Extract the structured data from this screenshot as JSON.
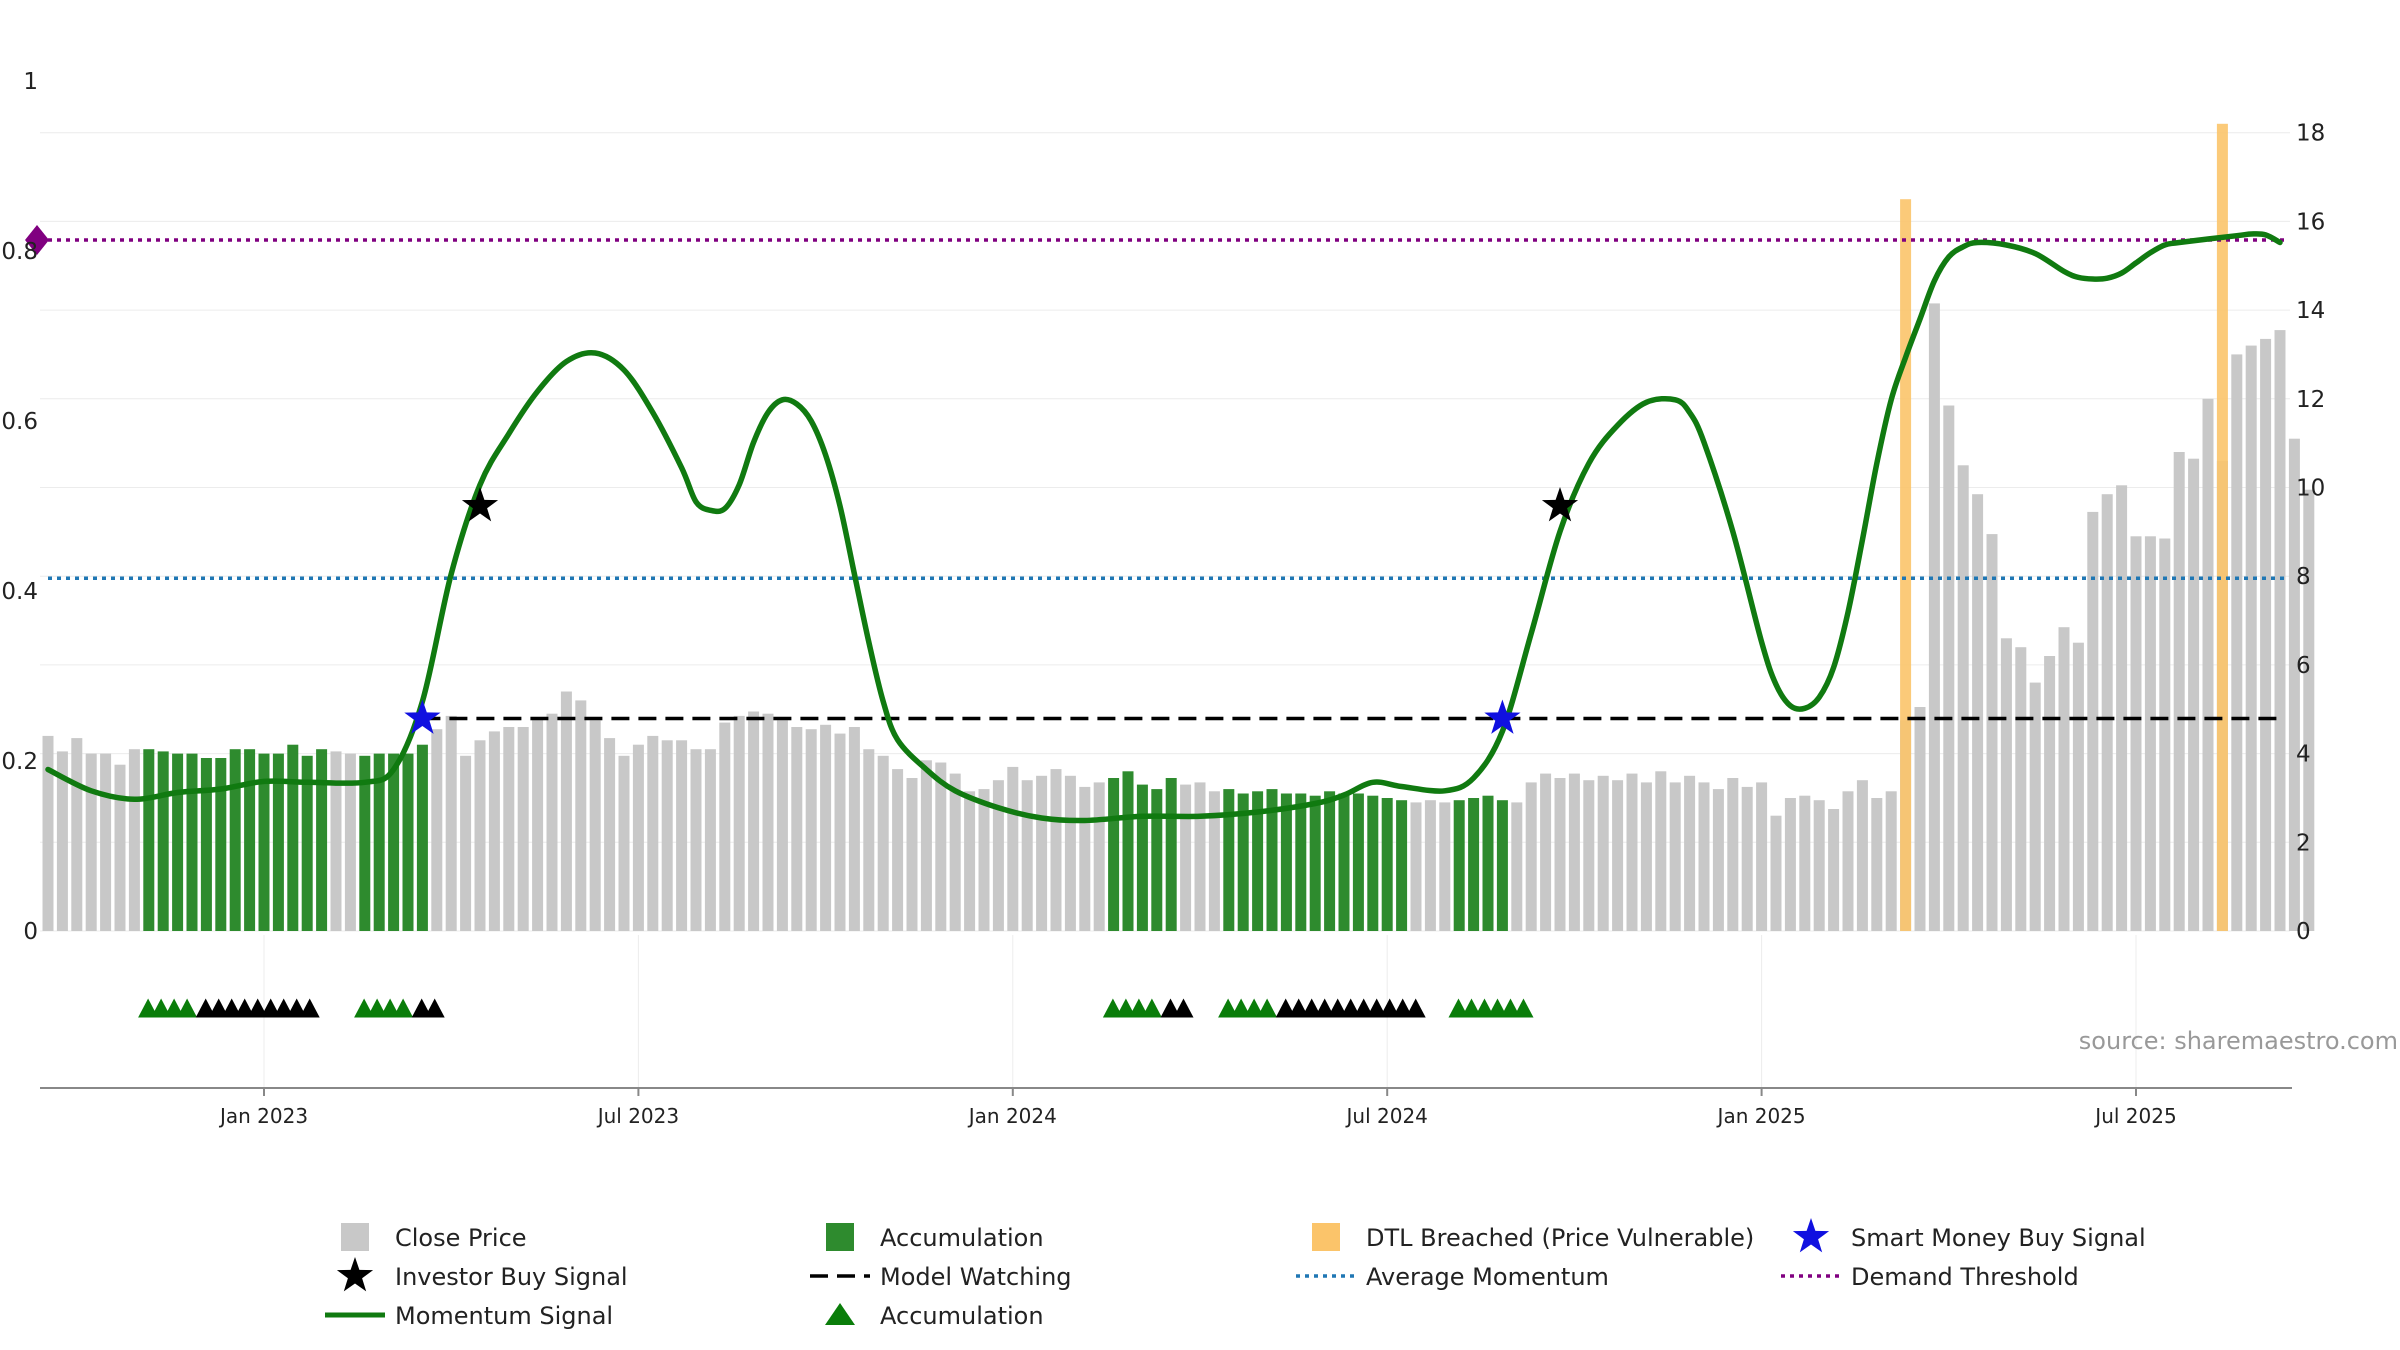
{
  "source": "source: sharemaestro.com",
  "colors": {
    "close_price": "#c8c8c8",
    "accumulation": "#2e8b2e",
    "dtl": "#fbc46a",
    "momentum": "#107a10",
    "model_watching": "#000000",
    "average_momentum": "#1f77b4",
    "demand_threshold": "#800080",
    "smart_money": "#1010e0",
    "investor_buy": "#000000",
    "accum_marker": "#0a7d0a"
  },
  "chart_data": {
    "type": "bar",
    "x_axis": {
      "ticks": [
        "Jan 2023",
        "Jul 2023",
        "Jan 2024",
        "Jul 2024",
        "Jan 2025",
        "Jul 2025"
      ],
      "tick_index": [
        15,
        41,
        67,
        93,
        119,
        145
      ],
      "grid": true
    },
    "y_left": {
      "range": [
        0,
        1
      ],
      "ticks": [
        "0",
        "0.2",
        "0.4",
        "0.6",
        "0.8",
        "1"
      ],
      "tick_values": [
        0,
        0.2,
        0.4,
        0.6,
        0.8,
        1.0
      ]
    },
    "y_right": {
      "range": [
        0,
        18.3
      ],
      "ticks": [
        "0",
        "2",
        "4",
        "6",
        "8",
        "10",
        "12",
        "14",
        "16",
        "18"
      ],
      "tick_values": [
        0,
        2,
        4,
        6,
        8,
        10,
        12,
        14,
        16,
        18
      ]
    },
    "close_price": [
      4.4,
      4.05,
      4.35,
      4.0,
      4.0,
      3.75,
      4.1,
      4.1,
      4.05,
      4.0,
      4.0,
      3.9,
      3.9,
      4.1,
      4.1,
      4.0,
      4.0,
      4.2,
      3.95,
      4.1,
      4.05,
      4.0,
      3.95,
      4.0,
      4.0,
      4.0,
      4.2,
      4.55,
      4.85,
      3.95,
      4.3,
      4.5,
      4.6,
      4.6,
      4.8,
      4.9,
      5.4,
      5.2,
      4.75,
      4.35,
      3.95,
      4.2,
      4.4,
      4.3,
      4.3,
      4.1,
      4.1,
      4.7,
      4.85,
      4.95,
      4.9,
      4.75,
      4.6,
      4.55,
      4.65,
      4.45,
      4.6,
      4.1,
      3.95,
      3.65,
      3.45,
      3.85,
      3.8,
      3.55,
      3.15,
      3.2,
      3.4,
      3.7,
      3.4,
      3.5,
      3.65,
      3.5,
      3.25,
      3.35,
      3.45,
      3.6,
      3.3,
      3.2,
      3.45,
      3.3,
      3.35,
      3.15,
      3.2,
      3.1,
      3.15,
      3.2,
      3.1,
      3.1,
      3.05,
      3.15,
      3.1,
      3.1,
      3.05,
      3.0,
      2.95,
      2.9,
      2.95,
      2.9,
      2.95,
      3.0,
      3.05,
      2.95,
      2.9,
      3.35,
      3.55,
      3.45,
      3.55,
      3.4,
      3.5,
      3.4,
      3.55,
      3.35,
      3.6,
      3.35,
      3.5,
      3.35,
      3.2,
      3.45,
      3.25,
      3.35,
      2.6,
      3.0,
      3.05,
      2.95,
      2.75,
      3.15,
      3.4,
      3.0,
      3.15,
      4.75,
      5.05,
      14.15,
      11.85,
      10.5,
      9.85,
      8.95,
      6.6,
      6.4,
      5.6,
      6.2,
      6.85,
      6.5,
      9.45,
      9.85,
      10.05,
      8.9,
      8.9,
      8.85,
      10.8,
      10.65,
      12.0,
      10.6,
      13.0,
      13.2,
      13.35,
      13.55,
      11.1,
      9.95
    ],
    "accumulation_bars": [
      7,
      8,
      9,
      10,
      11,
      12,
      13,
      14,
      15,
      16,
      17,
      18,
      19,
      22,
      23,
      24,
      25,
      26,
      74,
      75,
      76,
      77,
      78,
      82,
      83,
      84,
      85,
      86,
      87,
      88,
      89,
      90,
      91,
      92,
      93,
      94,
      98,
      99,
      100,
      101
    ],
    "dtl_bars": [
      {
        "index": 129,
        "value": 16.5
      },
      {
        "index": 151,
        "value": 18.2
      }
    ],
    "momentum": [
      [
        0,
        0.19
      ],
      [
        3,
        0.165
      ],
      [
        6,
        0.155
      ],
      [
        9,
        0.163
      ],
      [
        12,
        0.167
      ],
      [
        15,
        0.176
      ],
      [
        18,
        0.175
      ],
      [
        22,
        0.175
      ],
      [
        24,
        0.19
      ],
      [
        26,
        0.27
      ],
      [
        28,
        0.42
      ],
      [
        30,
        0.525
      ],
      [
        32,
        0.585
      ],
      [
        34,
        0.635
      ],
      [
        36,
        0.67
      ],
      [
        38,
        0.68
      ],
      [
        40,
        0.66
      ],
      [
        42,
        0.61
      ],
      [
        44,
        0.545
      ],
      [
        45,
        0.505
      ],
      [
        46,
        0.495
      ],
      [
        47,
        0.497
      ],
      [
        48,
        0.525
      ],
      [
        49,
        0.575
      ],
      [
        50,
        0.61
      ],
      [
        51,
        0.625
      ],
      [
        52,
        0.62
      ],
      [
        53,
        0.6
      ],
      [
        54,
        0.56
      ],
      [
        55,
        0.5
      ],
      [
        56,
        0.42
      ],
      [
        57,
        0.34
      ],
      [
        58,
        0.27
      ],
      [
        59,
        0.225
      ],
      [
        61,
        0.19
      ],
      [
        63,
        0.165
      ],
      [
        66,
        0.145
      ],
      [
        69,
        0.133
      ],
      [
        72,
        0.13
      ],
      [
        76,
        0.135
      ],
      [
        80,
        0.135
      ],
      [
        84,
        0.14
      ],
      [
        88,
        0.15
      ],
      [
        90,
        0.16
      ],
      [
        92,
        0.175
      ],
      [
        94,
        0.17
      ],
      [
        97,
        0.165
      ],
      [
        99,
        0.18
      ],
      [
        101,
        0.235
      ],
      [
        103,
        0.35
      ],
      [
        105,
        0.47
      ],
      [
        107,
        0.55
      ],
      [
        109,
        0.595
      ],
      [
        111,
        0.622
      ],
      [
        113,
        0.625
      ],
      [
        114,
        0.61
      ],
      [
        115,
        0.575
      ],
      [
        117,
        0.47
      ],
      [
        119,
        0.34
      ],
      [
        120,
        0.29
      ],
      [
        121,
        0.265
      ],
      [
        122,
        0.262
      ],
      [
        123,
        0.275
      ],
      [
        124,
        0.31
      ],
      [
        125,
        0.375
      ],
      [
        126,
        0.46
      ],
      [
        127,
        0.55
      ],
      [
        128,
        0.625
      ],
      [
        129,
        0.675
      ],
      [
        130,
        0.72
      ],
      [
        131,
        0.765
      ],
      [
        132,
        0.793
      ],
      [
        133,
        0.805
      ],
      [
        134,
        0.81
      ],
      [
        136,
        0.807
      ],
      [
        138,
        0.797
      ],
      [
        140,
        0.776
      ],
      [
        141,
        0.769
      ],
      [
        142,
        0.767
      ],
      [
        143,
        0.768
      ],
      [
        144,
        0.774
      ],
      [
        145,
        0.786
      ],
      [
        146,
        0.798
      ],
      [
        147,
        0.807
      ],
      [
        148,
        0.81
      ],
      [
        152,
        0.818
      ],
      [
        153,
        0.82
      ],
      [
        154,
        0.819
      ],
      [
        155,
        0.81
      ]
    ],
    "model_watching": {
      "value": 0.25,
      "from_index": 26,
      "to_index": 155
    },
    "average_momentum": 0.415,
    "demand_threshold": 0.813,
    "smart_money_signals": [
      [
        26,
        0.25
      ],
      [
        101,
        0.25
      ]
    ],
    "investor_buy_signals": [
      [
        30,
        0.5
      ],
      [
        105,
        0.5
      ]
    ],
    "accumulation_markers": [
      {
        "start": 6.5,
        "end": 10.5,
        "color": "green"
      },
      {
        "start": 10.5,
        "end": 18.5,
        "color": "black"
      },
      {
        "start": 21.5,
        "end": 25.5,
        "color": "green"
      },
      {
        "start": 25.5,
        "end": 27.0,
        "color": "black"
      },
      {
        "start": 73.5,
        "end": 77.5,
        "color": "green"
      },
      {
        "start": 77.5,
        "end": 79.0,
        "color": "black"
      },
      {
        "start": 81.5,
        "end": 85.5,
        "color": "green"
      },
      {
        "start": 85.5,
        "end": 95.0,
        "color": "black"
      },
      {
        "start": 97.5,
        "end": 102.5,
        "color": "green"
      }
    ]
  },
  "legend": [
    {
      "label": "Close Price",
      "symbol": "square-gray"
    },
    {
      "label": "Accumulation",
      "symbol": "square-green"
    },
    {
      "label": "DTL Breached (Price Vulnerable)",
      "symbol": "square-orange"
    },
    {
      "label": "Smart Money Buy Signal",
      "symbol": "star-blue"
    },
    {
      "label": "Investor Buy Signal",
      "symbol": "star-black"
    },
    {
      "label": "Model Watching",
      "symbol": "dash-black"
    },
    {
      "label": "Average Momentum",
      "symbol": "dot-blue"
    },
    {
      "label": "Demand Threshold",
      "symbol": "dot-purple"
    },
    {
      "label": "Momentum Signal",
      "symbol": "line-green"
    },
    {
      "label": "Accumulation",
      "symbol": "triangle-green"
    }
  ]
}
